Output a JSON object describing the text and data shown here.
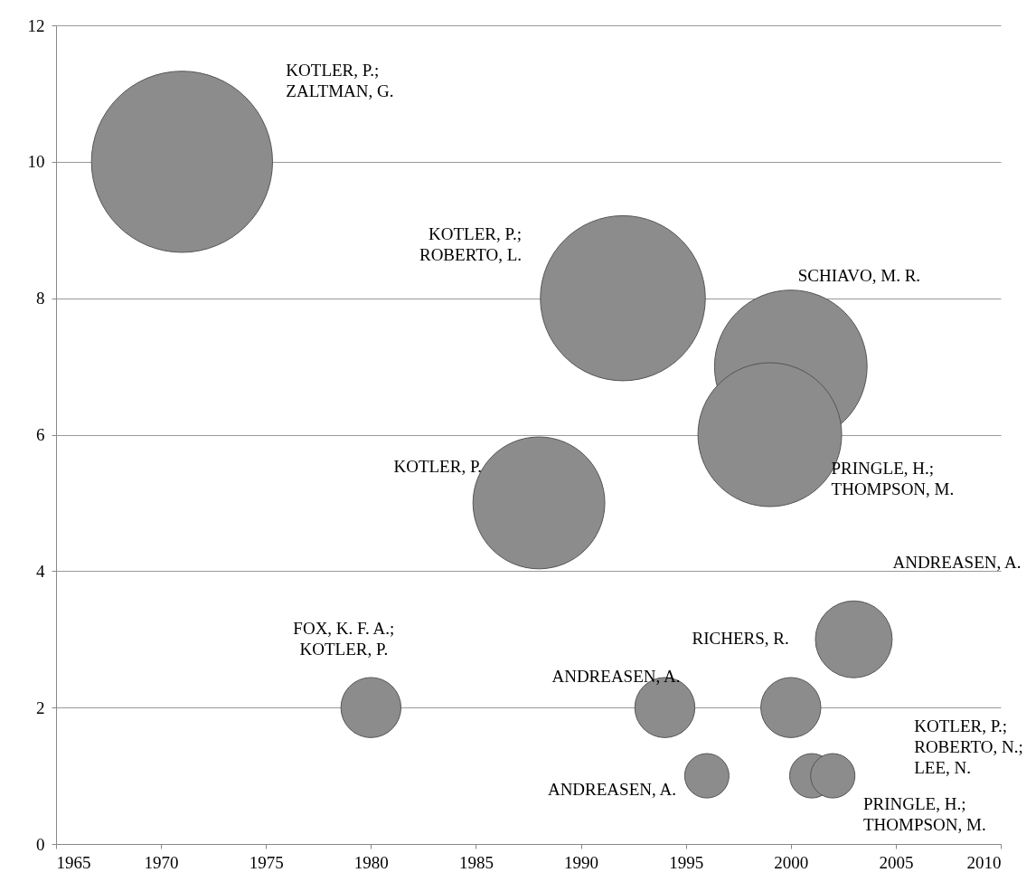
{
  "chart_data": {
    "type": "bubble",
    "x": [
      1971,
      1992,
      2000,
      1999,
      1988,
      2003,
      1980,
      1994,
      2000,
      1996,
      2001,
      2002
    ],
    "values": [
      10,
      8,
      7,
      6,
      5,
      3,
      2,
      2,
      2,
      1,
      1,
      1
    ],
    "sizes": [
      1,
      0.83,
      0.71,
      0.63,
      0.53,
      0.18,
      0.11,
      0.11,
      0.11,
      0.06,
      0.06,
      0.06
    ],
    "color": "#8c8c8c",
    "xlim": [
      1965,
      2010
    ],
    "xticks": [
      1965,
      1970,
      1975,
      1980,
      1985,
      1990,
      1995,
      2000,
      2005,
      2010
    ],
    "ylim": [
      0,
      12
    ],
    "yticks": [
      0,
      2,
      4,
      6,
      8,
      10,
      12
    ],
    "grid": "y",
    "annotations": [
      "KOTLER, P.;\nZALTMAN, G.",
      "KOTLER, P.;\nROBERTO, L.",
      "SCHIAVO, M. R.",
      "PRINGLE, H.;\nTHOMPSON, M.",
      "KOTLER, P.",
      "ANDREASEN, A.",
      "FOX, K. F. A.;\nKOTLER, P.",
      "ANDREASEN, A.",
      "RICHERS, R.",
      "ANDREASEN, A.",
      "PRINGLE, H.;\nTHOMPSON, M.",
      "KOTLER, P.;\nROBERTO, N.;\nLEE, N."
    ]
  }
}
